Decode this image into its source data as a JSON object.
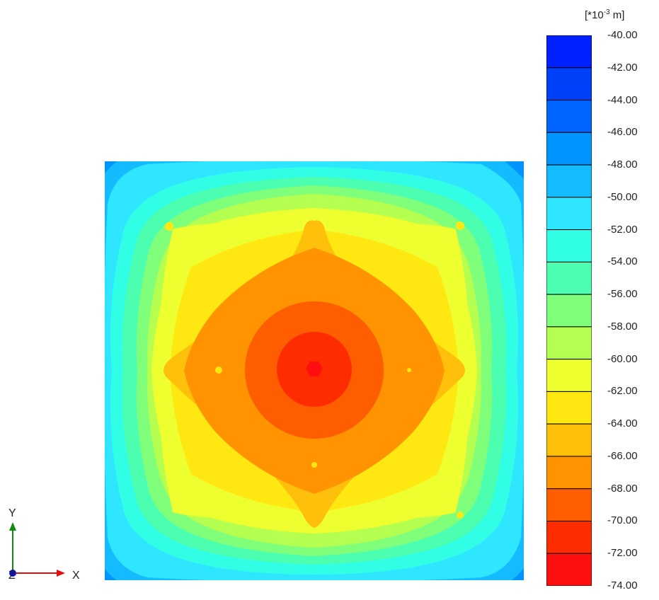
{
  "legend": {
    "unit_prefix": "[*10",
    "unit_exp": "-3",
    "unit_suffix": " m]",
    "ticks": [
      "-40.00",
      "-42.00",
      "-44.00",
      "-46.00",
      "-48.00",
      "-50.00",
      "-52.00",
      "-54.00",
      "-56.00",
      "-58.00",
      "-60.00",
      "-62.00",
      "-64.00",
      "-66.00",
      "-68.00",
      "-70.00",
      "-72.00",
      "-74.00"
    ],
    "colors": [
      "#0020ff",
      "#0040f8",
      "#0064ff",
      "#0094ff",
      "#14bcff",
      "#2ee6ff",
      "#30ffe6",
      "#4cffb0",
      "#80ff7a",
      "#b4ff50",
      "#eeff30",
      "#ffe812",
      "#ffc00c",
      "#ff9400",
      "#ff5e00",
      "#ff2c00",
      "#ff0e10"
    ]
  },
  "axes": {
    "x_label": "X",
    "y_label": "Y",
    "z_label": "Z"
  },
  "colors": {
    "x_axis": "#e01010",
    "y_axis": "#108a10",
    "z_axis": "#1010d0"
  }
}
